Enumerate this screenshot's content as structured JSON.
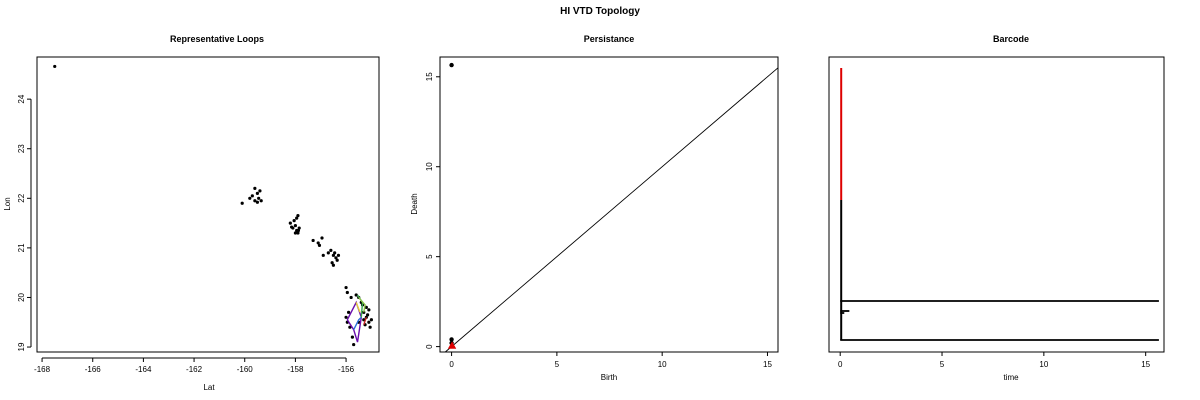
{
  "figure": {
    "title": "HI VTD Topology"
  },
  "chart_data": [
    {
      "type": "scatter",
      "title": "Representative Loops",
      "xlabel": "Lat",
      "ylabel": "Lon",
      "xlim": [
        -168.2,
        -154.7
      ],
      "ylim": [
        18.9,
        24.85
      ],
      "xticks": [
        "-168",
        "-166",
        "-164",
        "-162",
        "-160",
        "-158",
        "-156"
      ],
      "yticks": [
        "19",
        "20",
        "21",
        "22",
        "23",
        "24"
      ],
      "points": [
        [
          -167.5,
          24.66
        ],
        [
          -160.1,
          21.9
        ],
        [
          -159.8,
          22.0
        ],
        [
          -159.7,
          22.05
        ],
        [
          -159.6,
          21.95
        ],
        [
          -159.5,
          22.1
        ],
        [
          -159.4,
          22.15
        ],
        [
          -159.6,
          22.2
        ],
        [
          -159.45,
          22.0
        ],
        [
          -159.35,
          21.95
        ],
        [
          -159.5,
          21.92
        ],
        [
          -158.2,
          21.5
        ],
        [
          -158.1,
          21.4
        ],
        [
          -158.0,
          21.45
        ],
        [
          -157.95,
          21.35
        ],
        [
          -157.9,
          21.3
        ],
        [
          -157.85,
          21.4
        ],
        [
          -158.05,
          21.55
        ],
        [
          -157.95,
          21.6
        ],
        [
          -157.88,
          21.35
        ],
        [
          -158.15,
          21.42
        ],
        [
          -157.9,
          21.65
        ],
        [
          -158.0,
          21.3
        ],
        [
          -157.3,
          21.15
        ],
        [
          -157.1,
          21.1
        ],
        [
          -156.95,
          21.2
        ],
        [
          -157.05,
          21.05
        ],
        [
          -156.9,
          20.85
        ],
        [
          -156.7,
          20.9
        ],
        [
          -156.5,
          20.85
        ],
        [
          -156.4,
          20.8
        ],
        [
          -156.6,
          20.95
        ],
        [
          -156.45,
          20.9
        ],
        [
          -156.35,
          20.75
        ],
        [
          -156.5,
          20.65
        ],
        [
          -156.55,
          20.7
        ],
        [
          -156.3,
          20.85
        ],
        [
          -156.0,
          20.2
        ],
        [
          -155.95,
          20.1
        ],
        [
          -155.8,
          20.0
        ],
        [
          -155.9,
          19.7
        ],
        [
          -156.0,
          19.6
        ],
        [
          -155.95,
          19.5
        ],
        [
          -155.85,
          19.4
        ],
        [
          -155.75,
          19.2
        ],
        [
          -155.7,
          19.05
        ],
        [
          -155.5,
          19.5
        ],
        [
          -155.3,
          19.7
        ],
        [
          -155.2,
          19.6
        ],
        [
          -155.1,
          19.5
        ],
        [
          -155.05,
          19.4
        ],
        [
          -155.2,
          19.8
        ],
        [
          -155.4,
          19.9
        ],
        [
          -155.6,
          20.05
        ],
        [
          -155.3,
          19.55
        ],
        [
          -155.15,
          19.65
        ],
        [
          -155.25,
          19.45
        ],
        [
          -155.0,
          19.55
        ],
        [
          -155.1,
          19.75
        ],
        [
          -155.35,
          19.85
        ],
        [
          -155.5,
          20.0
        ]
      ],
      "loops": [
        {
          "color": "#6a0dad",
          "path": [
            [
              -155.95,
              19.55
            ],
            [
              -155.7,
              19.35
            ],
            [
              -155.55,
              19.1
            ],
            [
              -155.4,
              19.6
            ],
            [
              -155.6,
              19.9
            ],
            [
              -155.95,
              19.55
            ]
          ]
        },
        {
          "color": "#2a6fdb",
          "path": [
            [
              -155.7,
              19.35
            ],
            [
              -155.5,
              19.55
            ],
            [
              -155.4,
              19.6
            ]
          ]
        },
        {
          "color": "#3aa64c",
          "path": [
            [
              -155.55,
              20.05
            ],
            [
              -155.35,
              19.9
            ],
            [
              -155.4,
              19.6
            ]
          ]
        },
        {
          "color": "#8bc34a",
          "path": [
            [
              -155.5,
              20.0
            ],
            [
              -155.25,
              19.85
            ],
            [
              -155.3,
              19.7
            ]
          ]
        },
        {
          "color": "#e6d23a",
          "path": [
            [
              -155.6,
              19.9
            ],
            [
              -155.45,
              19.7
            ]
          ]
        },
        {
          "color": "#cc2222",
          "path": [
            [
              -155.2,
              19.6
            ],
            [
              -155.3,
              19.45
            ]
          ]
        }
      ]
    },
    {
      "type": "scatter",
      "title": "Persistance",
      "xlabel": "Birth",
      "ylabel": "Death",
      "xlim": [
        -0.55,
        15.5
      ],
      "ylim": [
        -0.3,
        16.1
      ],
      "xticks": [
        "0",
        "5",
        "10",
        "15"
      ],
      "yticks": [
        "0",
        "5",
        "10",
        "15"
      ],
      "diagonal": true,
      "series": [
        {
          "dimension": 0,
          "color": "#000000",
          "points": [
            [
              0,
              15.65
            ],
            [
              0,
              0.4
            ],
            [
              0,
              0.2
            ]
          ]
        },
        {
          "dimension": 1,
          "color": "#dd0000",
          "points": [
            [
              0.02,
              0.06
            ],
            [
              0.03,
              0.05
            ]
          ]
        }
      ]
    },
    {
      "type": "barcode",
      "title": "Barcode",
      "xlabel": "time",
      "ylabel": "",
      "xlim": [
        -0.55,
        15.9
      ],
      "xticks": [
        "0",
        "5",
        "10",
        "15"
      ],
      "bars": [
        {
          "dimension": 0,
          "color": "#000000",
          "start": 0,
          "end": 15.65
        },
        {
          "dimension": 0,
          "color": "#000000",
          "start": 0,
          "end": 0.45
        },
        {
          "dimension": 0,
          "color": "#000000",
          "start": 0,
          "end": 15.65
        },
        {
          "dimension": 0,
          "color": "#000000",
          "start": 0,
          "end": 0.2
        },
        {
          "dimension": 0,
          "color": "#000000",
          "start": 0,
          "end": 0.15
        },
        {
          "dimension": 1,
          "color": "#dd0000",
          "start": 0.0,
          "end": 0.12
        }
      ]
    }
  ]
}
